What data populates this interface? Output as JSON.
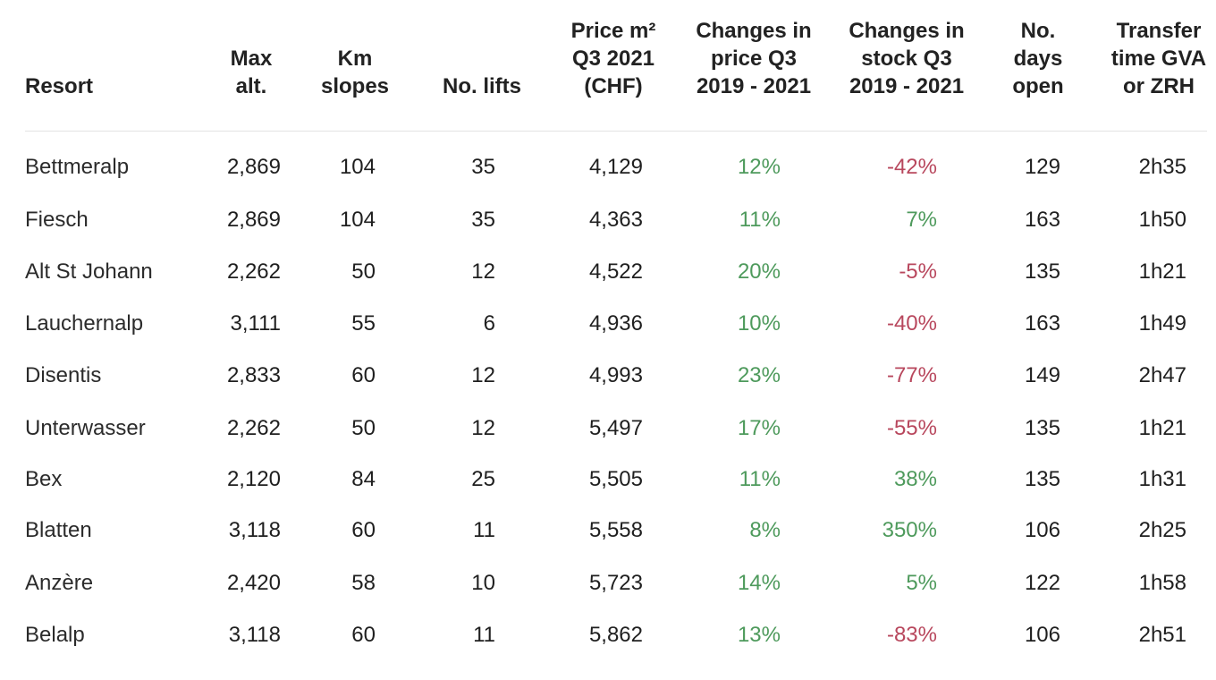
{
  "chart_data": {
    "type": "table",
    "columns": [
      "Resort",
      "Max\nalt.",
      "Km\nslopes",
      "No. lifts",
      "Price m²\nQ3 2021\n(CHF)",
      "Changes in\nprice Q3\n2019 - 2021",
      "Changes in\nstock Q3\n2019 - 2021",
      "No.\ndays\nopen",
      "Transfer\ntime GVA\nor ZRH"
    ],
    "rows": [
      [
        "Bettmeralp",
        "2,869",
        "104",
        "35",
        "4,129",
        "12%",
        "-42%",
        "129",
        "2h35"
      ],
      [
        "Fiesch",
        "2,869",
        "104",
        "35",
        "4,363",
        "11%",
        "7%",
        "163",
        "1h50"
      ],
      [
        "Alt St Johann",
        "2,262",
        "50",
        "12",
        "4,522",
        "20%",
        "-5%",
        "135",
        "1h21"
      ],
      [
        "Lauchernalp",
        "3,111",
        "55",
        "6",
        "4,936",
        "10%",
        "-40%",
        "163",
        "1h49"
      ],
      [
        "Disentis",
        "2,833",
        "60",
        "12",
        "4,993",
        "23%",
        "-77%",
        "149",
        "2h47"
      ],
      [
        "Unterwasser",
        "2,262",
        "50",
        "12",
        "5,497",
        "17%",
        "-55%",
        "135",
        "1h21"
      ],
      [
        "Bex",
        "2,120",
        "84",
        "25",
        "5,505",
        "11%",
        "38%",
        "135",
        "1h31"
      ],
      [
        "Blatten",
        "3,118",
        "60",
        "11",
        "5,558",
        "8%",
        "350%",
        "106",
        "2h25"
      ],
      [
        "Anzère",
        "2,420",
        "58",
        "10",
        "5,723",
        "14%",
        "5%",
        "122",
        "1h58"
      ],
      [
        "Belalp",
        "3,118",
        "60",
        "11",
        "5,862",
        "13%",
        "-83%",
        "106",
        "2h51"
      ]
    ]
  },
  "colors": {
    "positive": "#4e9a5c",
    "negative": "#b8475d",
    "text": "#1f1f1f"
  }
}
